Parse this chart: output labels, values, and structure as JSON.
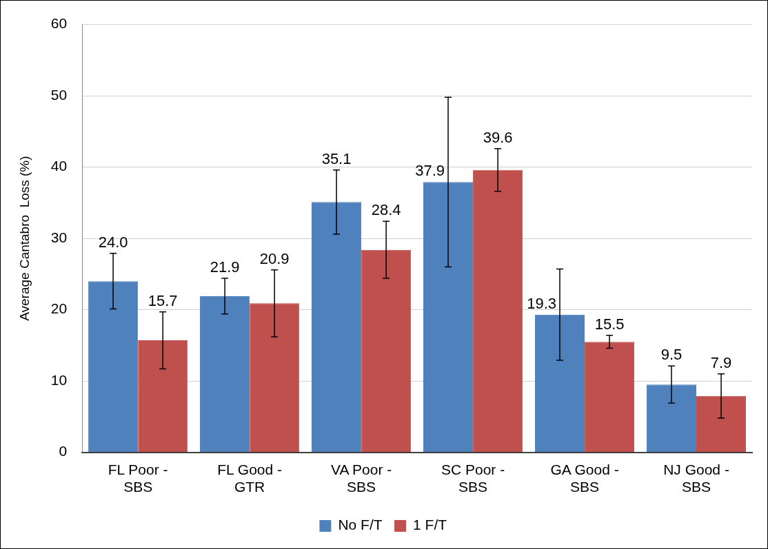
{
  "chart_data": {
    "type": "bar",
    "ylabel": "Average Cantabro  Loss (%)",
    "categories": [
      "FL Poor - SBS",
      "FL Good - GTR",
      "VA Poor - SBS",
      "SC Poor - SBS",
      "GA Good - SBS",
      "NJ Good - SBS"
    ],
    "series": [
      {
        "name": "No F/T",
        "color": "#4f81bd",
        "values": [
          24.0,
          21.9,
          35.1,
          37.9,
          19.3,
          9.5
        ],
        "value_labels": [
          "24.0",
          "21.9",
          "35.1",
          "37.9",
          "19.3",
          "9.5"
        ],
        "errors": [
          3.9,
          2.5,
          4.5,
          11.9,
          6.4,
          2.6
        ]
      },
      {
        "name": "1 F/T",
        "color": "#c0504d",
        "values": [
          15.7,
          20.9,
          28.4,
          39.6,
          15.5,
          7.9
        ],
        "value_labels": [
          "15.7",
          "20.9",
          "28.4",
          "39.6",
          "15.5",
          "7.9"
        ],
        "errors": [
          4.0,
          4.7,
          4.0,
          3.0,
          0.9,
          3.1
        ]
      }
    ],
    "ylim": [
      0,
      60
    ],
    "yticks": [
      0,
      10,
      20,
      30,
      40,
      50,
      60
    ],
    "grid": "y",
    "legend": "bottom"
  }
}
